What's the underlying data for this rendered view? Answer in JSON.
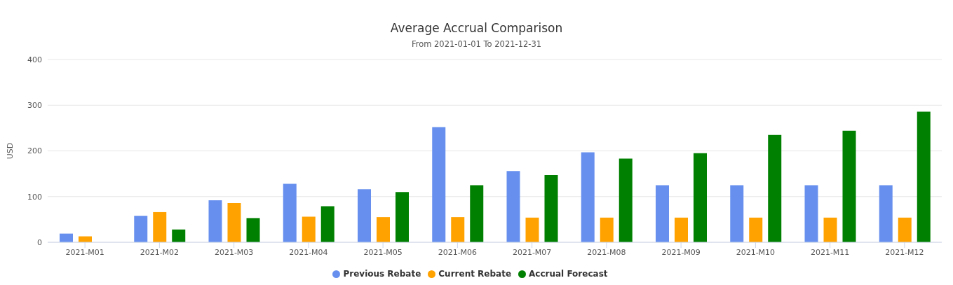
{
  "chart_data": {
    "type": "bar",
    "title": "Average Accrual Comparison",
    "subtitle": "From 2021-01-01 To 2021-12-31",
    "ylabel": "USD",
    "categories": [
      "2021-M01",
      "2021-M02",
      "2021-M03",
      "2021-M04",
      "2021-M05",
      "2021-M06",
      "2021-M07",
      "2021-M08",
      "2021-M09",
      "2021-M10",
      "2021-M11",
      "2021-M12"
    ],
    "series": [
      {
        "name": "Previous Rebate",
        "color": "#6790ee",
        "values": [
          19,
          58,
          92,
          128,
          116,
          252,
          156,
          197,
          125,
          125,
          125,
          125
        ]
      },
      {
        "name": "Current Rebate",
        "color": "#ffa200",
        "values": [
          13,
          66,
          86,
          56,
          55,
          55,
          54,
          54,
          54,
          54,
          54,
          54
        ]
      },
      {
        "name": "Accrual Forecast",
        "color": "#008000",
        "values": [
          null,
          28,
          53,
          79,
          110,
          125,
          147,
          183,
          195,
          235,
          244,
          286
        ]
      }
    ],
    "ylim": [
      0,
      400
    ],
    "yticks": [
      0,
      100,
      200,
      300,
      400
    ],
    "grid": "y",
    "legend": "bottom"
  }
}
